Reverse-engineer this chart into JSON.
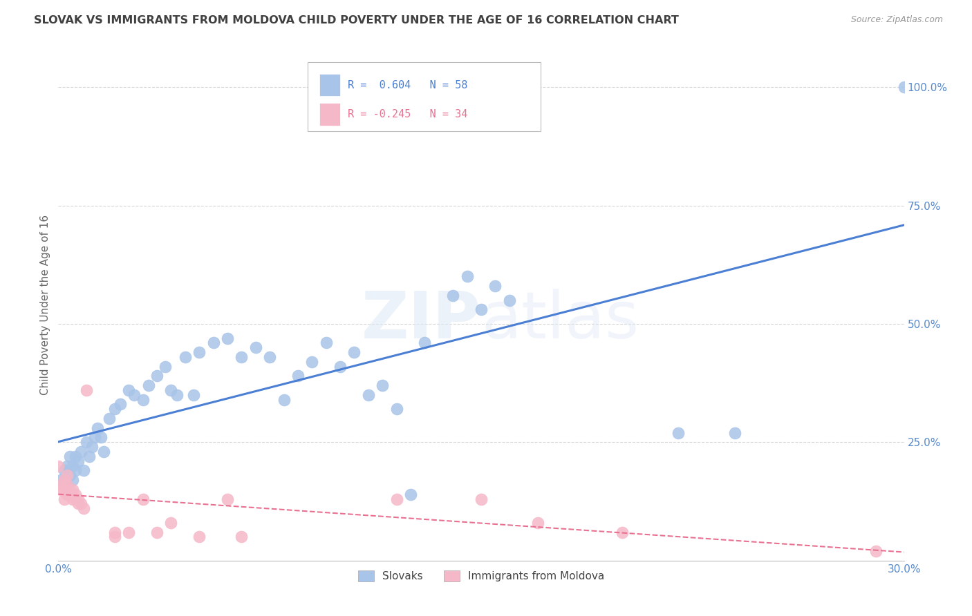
{
  "title": "SLOVAK VS IMMIGRANTS FROM MOLDOVA CHILD POVERTY UNDER THE AGE OF 16 CORRELATION CHART",
  "source": "Source: ZipAtlas.com",
  "ylabel": "Child Poverty Under the Age of 16",
  "right_yticks": [
    "100.0%",
    "75.0%",
    "50.0%",
    "25.0%"
  ],
  "right_ytick_vals": [
    1.0,
    0.75,
    0.5,
    0.25
  ],
  "legend_slovak": "R =  0.604   N = 58",
  "legend_moldova": "R = -0.245   N = 34",
  "legend_label_slovak": "Slovaks",
  "legend_label_moldova": "Immigrants from Moldova",
  "slovak_color": "#a8c4e8",
  "moldova_color": "#f5b8c8",
  "slovak_line_color": "#4a7fd4",
  "moldova_line_color": "#e87090",
  "background_color": "#ffffff",
  "grid_color": "#cccccc",
  "title_color": "#404040",
  "axis_label_color": "#5588cc",
  "xlim": [
    0.0,
    0.3
  ],
  "ylim": [
    0.0,
    1.08
  ],
  "slovak_points": [
    [
      0.001,
      0.17
    ],
    [
      0.002,
      0.19
    ],
    [
      0.003,
      0.16
    ],
    [
      0.003,
      0.2
    ],
    [
      0.004,
      0.18
    ],
    [
      0.004,
      0.22
    ],
    [
      0.005,
      0.2
    ],
    [
      0.005,
      0.17
    ],
    [
      0.006,
      0.22
    ],
    [
      0.006,
      0.19
    ],
    [
      0.007,
      0.21
    ],
    [
      0.008,
      0.23
    ],
    [
      0.009,
      0.19
    ],
    [
      0.01,
      0.25
    ],
    [
      0.011,
      0.22
    ],
    [
      0.012,
      0.24
    ],
    [
      0.013,
      0.26
    ],
    [
      0.014,
      0.28
    ],
    [
      0.015,
      0.26
    ],
    [
      0.016,
      0.23
    ],
    [
      0.018,
      0.3
    ],
    [
      0.02,
      0.32
    ],
    [
      0.022,
      0.33
    ],
    [
      0.025,
      0.36
    ],
    [
      0.027,
      0.35
    ],
    [
      0.03,
      0.34
    ],
    [
      0.032,
      0.37
    ],
    [
      0.035,
      0.39
    ],
    [
      0.038,
      0.41
    ],
    [
      0.04,
      0.36
    ],
    [
      0.042,
      0.35
    ],
    [
      0.045,
      0.43
    ],
    [
      0.048,
      0.35
    ],
    [
      0.05,
      0.44
    ],
    [
      0.055,
      0.46
    ],
    [
      0.06,
      0.47
    ],
    [
      0.065,
      0.43
    ],
    [
      0.07,
      0.45
    ],
    [
      0.075,
      0.43
    ],
    [
      0.08,
      0.34
    ],
    [
      0.085,
      0.39
    ],
    [
      0.09,
      0.42
    ],
    [
      0.095,
      0.46
    ],
    [
      0.1,
      0.41
    ],
    [
      0.105,
      0.44
    ],
    [
      0.11,
      0.35
    ],
    [
      0.115,
      0.37
    ],
    [
      0.12,
      0.32
    ],
    [
      0.125,
      0.14
    ],
    [
      0.13,
      0.46
    ],
    [
      0.14,
      0.56
    ],
    [
      0.145,
      0.6
    ],
    [
      0.15,
      0.53
    ],
    [
      0.155,
      0.58
    ],
    [
      0.16,
      0.55
    ],
    [
      0.22,
      0.27
    ],
    [
      0.24,
      0.27
    ],
    [
      0.3,
      1.0
    ]
  ],
  "moldova_points": [
    [
      0.0,
      0.2
    ],
    [
      0.001,
      0.15
    ],
    [
      0.001,
      0.16
    ],
    [
      0.002,
      0.17
    ],
    [
      0.002,
      0.15
    ],
    [
      0.002,
      0.13
    ],
    [
      0.003,
      0.18
    ],
    [
      0.003,
      0.16
    ],
    [
      0.003,
      0.14
    ],
    [
      0.004,
      0.15
    ],
    [
      0.004,
      0.14
    ],
    [
      0.005,
      0.13
    ],
    [
      0.005,
      0.15
    ],
    [
      0.006,
      0.13
    ],
    [
      0.006,
      0.14
    ],
    [
      0.007,
      0.13
    ],
    [
      0.007,
      0.12
    ],
    [
      0.008,
      0.12
    ],
    [
      0.009,
      0.11
    ],
    [
      0.01,
      0.36
    ],
    [
      0.02,
      0.05
    ],
    [
      0.02,
      0.06
    ],
    [
      0.03,
      0.13
    ],
    [
      0.04,
      0.08
    ],
    [
      0.06,
      0.13
    ],
    [
      0.12,
      0.13
    ],
    [
      0.15,
      0.13
    ],
    [
      0.17,
      0.08
    ],
    [
      0.2,
      0.06
    ],
    [
      0.29,
      0.02
    ],
    [
      0.025,
      0.06
    ],
    [
      0.035,
      0.06
    ],
    [
      0.05,
      0.05
    ],
    [
      0.065,
      0.05
    ]
  ]
}
